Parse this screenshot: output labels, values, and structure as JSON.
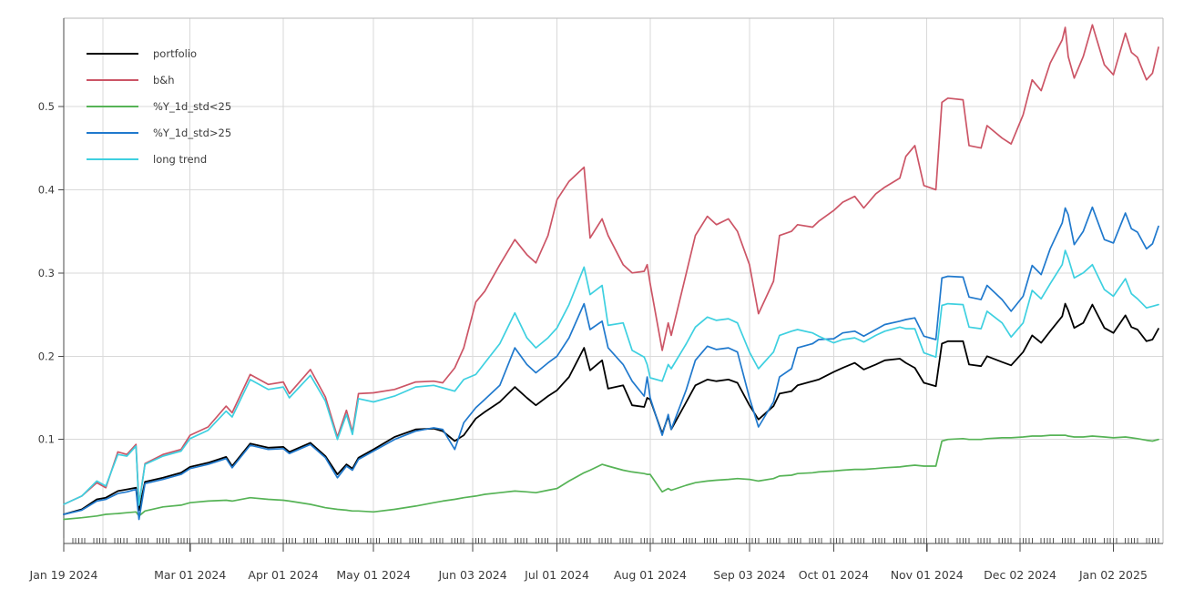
{
  "chart_data": {
    "type": "line",
    "title": "",
    "grid": true,
    "legend_position": "top-left",
    "colors": {
      "background": "#ffffff",
      "gridline": "#d9d9d9",
      "axis": "#4a4a4a",
      "tick_text": "#3c3c3c"
    },
    "x_axis": {
      "start": "2024-01-19",
      "end": "2025-01-17",
      "minor_ticks": "weekdays-daily",
      "extra_gridline_dates": [
        "2024-02-01"
      ],
      "major_ticks": [
        {
          "date": "2024-01-19",
          "label": "Jan 19 2024"
        },
        {
          "date": "2024-03-01",
          "label": "Mar 01 2024"
        },
        {
          "date": "2024-04-01",
          "label": "Apr 01 2024"
        },
        {
          "date": "2024-05-01",
          "label": "May 01 2024"
        },
        {
          "date": "2024-06-03",
          "label": "Jun 03 2024"
        },
        {
          "date": "2024-07-01",
          "label": "Jul 01 2024"
        },
        {
          "date": "2024-08-01",
          "label": "Aug 01 2024"
        },
        {
          "date": "2024-09-03",
          "label": "Sep 03 2024"
        },
        {
          "date": "2024-10-01",
          "label": "Oct 01 2024"
        },
        {
          "date": "2024-11-01",
          "label": "Nov 01 2024"
        },
        {
          "date": "2024-12-02",
          "label": "Dec 02 2024"
        },
        {
          "date": "2025-01-02",
          "label": "Jan 02 2025"
        }
      ]
    },
    "y_axis": {
      "min": -0.025,
      "max": 0.606,
      "ticks": [
        0.1,
        0.2,
        0.3,
        0.4,
        0.5
      ],
      "tick_labels": [
        "0.1",
        "0.2",
        "0.3",
        "0.4",
        "0.5"
      ]
    },
    "dates": [
      "2024-01-19",
      "2024-01-25",
      "2024-01-30",
      "2024-02-02",
      "2024-02-06",
      "2024-02-09",
      "2024-02-12",
      "2024-02-13",
      "2024-02-15",
      "2024-02-21",
      "2024-02-27",
      "2024-03-01",
      "2024-03-07",
      "2024-03-13",
      "2024-03-15",
      "2024-03-21",
      "2024-03-27",
      "2024-04-01",
      "2024-04-03",
      "2024-04-10",
      "2024-04-15",
      "2024-04-19",
      "2024-04-22",
      "2024-04-24",
      "2024-04-26",
      "2024-05-01",
      "2024-05-08",
      "2024-05-15",
      "2024-05-21",
      "2024-05-24",
      "2024-05-28",
      "2024-05-31",
      "2024-06-04",
      "2024-06-07",
      "2024-06-12",
      "2024-06-17",
      "2024-06-21",
      "2024-06-24",
      "2024-06-28",
      "2024-07-01",
      "2024-07-05",
      "2024-07-10",
      "2024-07-12",
      "2024-07-16",
      "2024-07-18",
      "2024-07-23",
      "2024-07-26",
      "2024-07-30",
      "2024-07-31",
      "2024-08-01",
      "2024-08-05",
      "2024-08-07",
      "2024-08-08",
      "2024-08-13",
      "2024-08-16",
      "2024-08-20",
      "2024-08-23",
      "2024-08-27",
      "2024-08-30",
      "2024-09-03",
      "2024-09-06",
      "2024-09-11",
      "2024-09-13",
      "2024-09-17",
      "2024-09-19",
      "2024-09-24",
      "2024-09-26",
      "2024-10-01",
      "2024-10-04",
      "2024-10-08",
      "2024-10-11",
      "2024-10-15",
      "2024-10-18",
      "2024-10-23",
      "2024-10-25",
      "2024-10-28",
      "2024-10-31",
      "2024-11-04",
      "2024-11-06",
      "2024-11-08",
      "2024-11-13",
      "2024-11-15",
      "2024-11-19",
      "2024-11-21",
      "2024-11-26",
      "2024-11-29",
      "2024-12-03",
      "2024-12-06",
      "2024-12-09",
      "2024-12-12",
      "2024-12-16",
      "2024-12-17",
      "2024-12-18",
      "2024-12-20",
      "2024-12-23",
      "2024-12-26",
      "2024-12-30",
      "2025-01-02",
      "2025-01-06",
      "2025-01-08",
      "2025-01-10",
      "2025-01-13",
      "2025-01-15",
      "2025-01-17"
    ],
    "series": [
      {
        "name": "portfolio",
        "color": "#000000",
        "width": 1.8,
        "values": [
          0.01,
          0.016,
          0.028,
          0.03,
          0.038,
          0.04,
          0.042,
          0.015,
          0.049,
          0.054,
          0.06,
          0.067,
          0.072,
          0.079,
          0.068,
          0.095,
          0.09,
          0.091,
          0.085,
          0.096,
          0.08,
          0.058,
          0.07,
          0.065,
          0.078,
          0.088,
          0.103,
          0.112,
          0.113,
          0.11,
          0.098,
          0.105,
          0.125,
          0.133,
          0.145,
          0.163,
          0.15,
          0.141,
          0.152,
          0.159,
          0.175,
          0.21,
          0.183,
          0.195,
          0.161,
          0.165,
          0.141,
          0.139,
          0.15,
          0.148,
          0.107,
          0.128,
          0.112,
          0.145,
          0.165,
          0.172,
          0.17,
          0.172,
          0.168,
          0.141,
          0.124,
          0.14,
          0.155,
          0.158,
          0.165,
          0.17,
          0.172,
          0.181,
          0.186,
          0.192,
          0.184,
          0.19,
          0.195,
          0.197,
          0.192,
          0.186,
          0.168,
          0.164,
          0.215,
          0.218,
          0.218,
          0.19,
          0.188,
          0.2,
          0.193,
          0.189,
          0.205,
          0.225,
          0.216,
          0.23,
          0.248,
          0.263,
          0.255,
          0.234,
          0.24,
          0.262,
          0.234,
          0.228,
          0.249,
          0.235,
          0.232,
          0.218,
          0.22,
          0.233
        ]
      },
      {
        "name": "b&h",
        "color": "#cc5566",
        "width": 1.7,
        "values": [
          0.022,
          0.032,
          0.048,
          0.042,
          0.085,
          0.082,
          0.094,
          0.021,
          0.071,
          0.082,
          0.088,
          0.105,
          0.115,
          0.14,
          0.132,
          0.178,
          0.166,
          0.169,
          0.155,
          0.184,
          0.151,
          0.103,
          0.135,
          0.109,
          0.155,
          0.156,
          0.16,
          0.169,
          0.17,
          0.168,
          0.186,
          0.21,
          0.265,
          0.278,
          0.31,
          0.34,
          0.322,
          0.312,
          0.345,
          0.388,
          0.41,
          0.427,
          0.342,
          0.365,
          0.345,
          0.31,
          0.3,
          0.302,
          0.31,
          0.287,
          0.207,
          0.24,
          0.225,
          0.3,
          0.345,
          0.368,
          0.358,
          0.365,
          0.35,
          0.31,
          0.251,
          0.29,
          0.345,
          0.35,
          0.358,
          0.355,
          0.362,
          0.375,
          0.385,
          0.392,
          0.378,
          0.395,
          0.403,
          0.414,
          0.44,
          0.453,
          0.405,
          0.4,
          0.505,
          0.51,
          0.508,
          0.453,
          0.45,
          0.477,
          0.462,
          0.455,
          0.49,
          0.532,
          0.519,
          0.552,
          0.58,
          0.595,
          0.56,
          0.534,
          0.56,
          0.598,
          0.55,
          0.538,
          0.588,
          0.565,
          0.559,
          0.532,
          0.54,
          0.571
        ]
      },
      {
        "name": "%Y_1d_std<25",
        "color": "#56b356",
        "width": 1.7,
        "values": [
          0.004,
          0.006,
          0.008,
          0.01,
          0.011,
          0.012,
          0.013,
          0.008,
          0.014,
          0.019,
          0.021,
          0.024,
          0.026,
          0.027,
          0.026,
          0.03,
          0.028,
          0.027,
          0.026,
          0.022,
          0.018,
          0.016,
          0.015,
          0.014,
          0.014,
          0.013,
          0.016,
          0.02,
          0.024,
          0.026,
          0.028,
          0.03,
          0.032,
          0.034,
          0.036,
          0.038,
          0.037,
          0.036,
          0.039,
          0.041,
          0.05,
          0.06,
          0.063,
          0.07,
          0.068,
          0.063,
          0.061,
          0.059,
          0.058,
          0.058,
          0.037,
          0.041,
          0.039,
          0.045,
          0.048,
          0.05,
          0.051,
          0.052,
          0.053,
          0.052,
          0.05,
          0.053,
          0.056,
          0.057,
          0.059,
          0.06,
          0.061,
          0.062,
          0.063,
          0.064,
          0.064,
          0.065,
          0.066,
          0.067,
          0.068,
          0.069,
          0.068,
          0.068,
          0.098,
          0.1,
          0.101,
          0.1,
          0.1,
          0.101,
          0.102,
          0.102,
          0.103,
          0.104,
          0.104,
          0.105,
          0.105,
          0.105,
          0.104,
          0.103,
          0.103,
          0.104,
          0.103,
          0.102,
          0.103,
          0.102,
          0.101,
          0.099,
          0.098,
          0.1
        ]
      },
      {
        "name": "%Y_1d_std>25",
        "color": "#2079cd",
        "width": 1.7,
        "values": [
          0.01,
          0.015,
          0.026,
          0.028,
          0.035,
          0.037,
          0.04,
          0.004,
          0.047,
          0.052,
          0.058,
          0.065,
          0.07,
          0.077,
          0.066,
          0.093,
          0.088,
          0.089,
          0.083,
          0.094,
          0.078,
          0.054,
          0.068,
          0.063,
          0.076,
          0.086,
          0.1,
          0.11,
          0.114,
          0.112,
          0.088,
          0.12,
          0.138,
          0.148,
          0.165,
          0.21,
          0.19,
          0.18,
          0.192,
          0.2,
          0.222,
          0.263,
          0.232,
          0.242,
          0.21,
          0.19,
          0.17,
          0.152,
          0.175,
          0.15,
          0.105,
          0.13,
          0.112,
          0.16,
          0.195,
          0.212,
          0.208,
          0.21,
          0.205,
          0.15,
          0.115,
          0.145,
          0.175,
          0.185,
          0.21,
          0.215,
          0.22,
          0.221,
          0.228,
          0.23,
          0.224,
          0.232,
          0.238,
          0.242,
          0.244,
          0.246,
          0.224,
          0.22,
          0.294,
          0.296,
          0.295,
          0.271,
          0.268,
          0.285,
          0.268,
          0.254,
          0.272,
          0.309,
          0.298,
          0.329,
          0.36,
          0.378,
          0.37,
          0.334,
          0.35,
          0.379,
          0.34,
          0.336,
          0.372,
          0.353,
          0.349,
          0.329,
          0.335,
          0.356
        ]
      },
      {
        "name": "long trend",
        "color": "#3ed0e0",
        "width": 1.7,
        "values": [
          0.022,
          0.032,
          0.05,
          0.044,
          0.082,
          0.08,
          0.092,
          0.021,
          0.07,
          0.08,
          0.086,
          0.101,
          0.111,
          0.134,
          0.127,
          0.172,
          0.16,
          0.163,
          0.15,
          0.177,
          0.146,
          0.1,
          0.13,
          0.106,
          0.149,
          0.145,
          0.152,
          0.163,
          0.165,
          0.162,
          0.158,
          0.172,
          0.178,
          0.192,
          0.215,
          0.252,
          0.222,
          0.21,
          0.222,
          0.234,
          0.262,
          0.307,
          0.274,
          0.285,
          0.237,
          0.24,
          0.207,
          0.199,
          0.19,
          0.174,
          0.17,
          0.19,
          0.185,
          0.215,
          0.235,
          0.247,
          0.243,
          0.245,
          0.24,
          0.205,
          0.185,
          0.205,
          0.225,
          0.23,
          0.232,
          0.228,
          0.224,
          0.216,
          0.22,
          0.222,
          0.217,
          0.225,
          0.23,
          0.235,
          0.233,
          0.233,
          0.204,
          0.199,
          0.261,
          0.263,
          0.262,
          0.235,
          0.233,
          0.254,
          0.24,
          0.223,
          0.24,
          0.279,
          0.269,
          0.287,
          0.31,
          0.327,
          0.318,
          0.294,
          0.3,
          0.31,
          0.28,
          0.272,
          0.293,
          0.275,
          0.269,
          0.258,
          0.26,
          0.262
        ]
      }
    ]
  }
}
